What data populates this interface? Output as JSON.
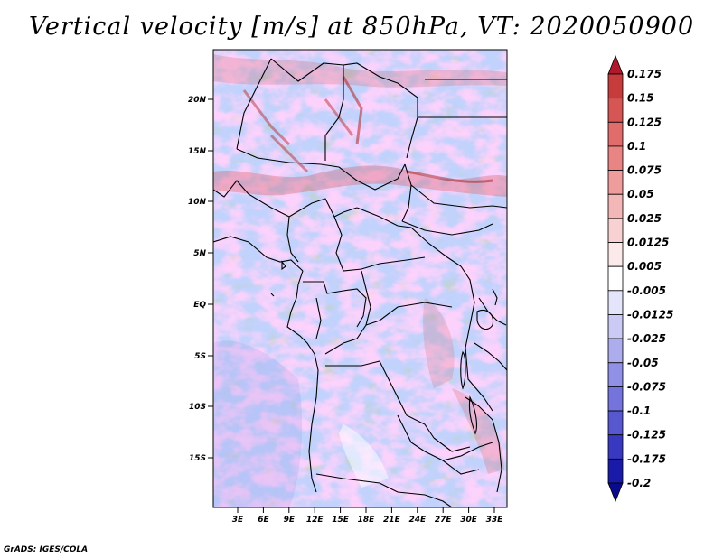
{
  "title": "Vertical velocity [m/s] at 850hPa, VT: 2020050900",
  "credit": "GrADS: IGES/COLA",
  "map": {
    "lat_labels": [
      "20N",
      "15N",
      "10N",
      "5N",
      "EQ",
      "5S",
      "10S",
      "15S"
    ],
    "lon_labels": [
      "3E",
      "6E",
      "9E",
      "12E",
      "15E",
      "18E",
      "21E",
      "24E",
      "27E",
      "30E",
      "33E"
    ]
  },
  "colorbar": {
    "labels": [
      "0.175",
      "0.15",
      "0.125",
      "0.1",
      "0.075",
      "0.05",
      "0.025",
      "0.0125",
      "0.005",
      "-0.005",
      "-0.0125",
      "-0.025",
      "-0.05",
      "-0.075",
      "-0.1",
      "-0.125",
      "-0.175",
      "-0.2"
    ],
    "colors": [
      "#b2182b",
      "#c63b3b",
      "#d65555",
      "#e06c6c",
      "#e88484",
      "#ef9c9c",
      "#f4b7b7",
      "#f8d2d2",
      "#fce9e9",
      "#ffffff",
      "#e4e4fb",
      "#cacaf4",
      "#adadee",
      "#9090e6",
      "#7474dc",
      "#5757d0",
      "#3838c0",
      "#1a1aa8",
      "#0a0a8c"
    ]
  }
}
